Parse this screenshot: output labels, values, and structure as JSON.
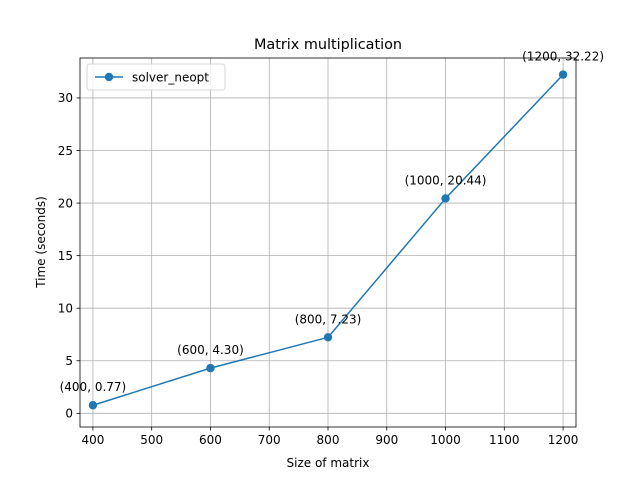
{
  "chart_data": {
    "type": "line",
    "title": "Matrix multiplication",
    "xlabel": "Size of matrix",
    "ylabel": "Time (seconds)",
    "xlim": [
      378,
      1222
    ],
    "ylim": [
      -1.3,
      33.8
    ],
    "xticks": [
      400,
      500,
      600,
      700,
      800,
      900,
      1000,
      1100,
      1200
    ],
    "yticks": [
      0,
      5,
      10,
      15,
      20,
      25,
      30
    ],
    "grid": true,
    "legend_position": "upper-left",
    "series": [
      {
        "name": "solver_neopt",
        "color": "#1f77b4",
        "marker": "circle",
        "x": [
          400,
          600,
          800,
          1000,
          1200
        ],
        "y": [
          0.77,
          4.3,
          7.23,
          20.44,
          32.22
        ]
      }
    ],
    "annotations": [
      "(400, 0.77)",
      "(600, 4.30)",
      "(800, 7.23)",
      "(1000, 20.44)",
      "(1200, 32.22)"
    ]
  }
}
